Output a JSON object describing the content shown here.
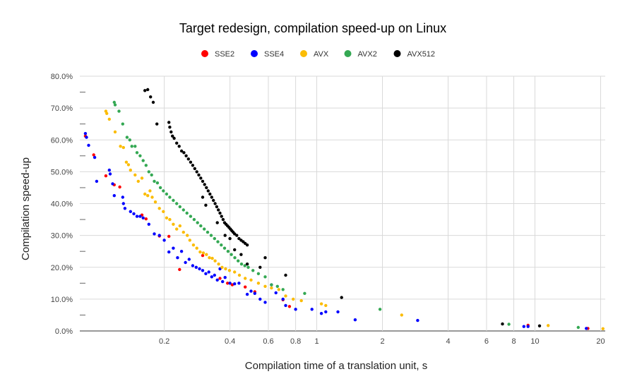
{
  "chart_data": {
    "type": "scatter",
    "title": "Target redesign, compilation speed-up on Linux",
    "xlabel": "Compilation time of a translation unit, s",
    "ylabel": "Compilation speed-up",
    "x_scale": "log",
    "xlim": [
      0.082,
      21
    ],
    "ylim": [
      0,
      0.8
    ],
    "x_ticks": [
      {
        "value": 0.2,
        "label": "0.2"
      },
      {
        "value": 0.4,
        "label": "0.4"
      },
      {
        "value": 0.6,
        "label": "0.6"
      },
      {
        "value": 0.8,
        "label": "0.8"
      },
      {
        "value": 1,
        "label": "1"
      },
      {
        "value": 2,
        "label": "2"
      },
      {
        "value": 4,
        "label": "4"
      },
      {
        "value": 6,
        "label": "6"
      },
      {
        "value": 8,
        "label": "8"
      },
      {
        "value": 10,
        "label": "10"
      },
      {
        "value": 20,
        "label": "20"
      }
    ],
    "y_ticks": [
      {
        "value": 0.0,
        "label": "0.0%"
      },
      {
        "value": 0.1,
        "label": "10.0%"
      },
      {
        "value": 0.2,
        "label": "20.0%"
      },
      {
        "value": 0.3,
        "label": "30.0%"
      },
      {
        "value": 0.4,
        "label": "40.0%"
      },
      {
        "value": 0.5,
        "label": "50.0%"
      },
      {
        "value": 0.6,
        "label": "60.0%"
      },
      {
        "value": 0.7,
        "label": "70.0%"
      },
      {
        "value": 0.8,
        "label": "80.0%"
      }
    ],
    "grid": true,
    "legend_position": "top",
    "series": [
      {
        "name": "SSE2",
        "color": "#ff0000",
        "points": [
          [
            0.087,
            0.612
          ],
          [
            0.095,
            0.553
          ],
          [
            0.108,
            0.487
          ],
          [
            0.118,
            0.459
          ],
          [
            0.125,
            0.452
          ],
          [
            0.158,
            0.364
          ],
          [
            0.165,
            0.352
          ],
          [
            0.19,
            0.298
          ],
          [
            0.21,
            0.297
          ],
          [
            0.235,
            0.193
          ],
          [
            0.3,
            0.237
          ],
          [
            0.36,
            0.165
          ],
          [
            0.39,
            0.15
          ],
          [
            0.41,
            0.145
          ],
          [
            0.47,
            0.138
          ],
          [
            0.52,
            0.123
          ],
          [
            0.7,
            0.098
          ],
          [
            0.75,
            0.077
          ],
          [
            9.3,
            0.018
          ],
          [
            17.5,
            0.008
          ]
        ]
      },
      {
        "name": "SSE4",
        "color": "#0000ff",
        "points": [
          [
            0.087,
            0.62
          ],
          [
            0.088,
            0.608
          ],
          [
            0.09,
            0.583
          ],
          [
            0.096,
            0.545
          ],
          [
            0.098,
            0.47
          ],
          [
            0.112,
            0.505
          ],
          [
            0.113,
            0.493
          ],
          [
            0.116,
            0.462
          ],
          [
            0.118,
            0.425
          ],
          [
            0.129,
            0.42
          ],
          [
            0.13,
            0.4
          ],
          [
            0.132,
            0.385
          ],
          [
            0.14,
            0.375
          ],
          [
            0.145,
            0.368
          ],
          [
            0.15,
            0.36
          ],
          [
            0.155,
            0.36
          ],
          [
            0.16,
            0.355
          ],
          [
            0.17,
            0.335
          ],
          [
            0.18,
            0.305
          ],
          [
            0.19,
            0.3
          ],
          [
            0.2,
            0.285
          ],
          [
            0.21,
            0.248
          ],
          [
            0.22,
            0.26
          ],
          [
            0.23,
            0.23
          ],
          [
            0.24,
            0.25
          ],
          [
            0.25,
            0.215
          ],
          [
            0.26,
            0.225
          ],
          [
            0.27,
            0.205
          ],
          [
            0.28,
            0.2
          ],
          [
            0.29,
            0.195
          ],
          [
            0.3,
            0.19
          ],
          [
            0.31,
            0.18
          ],
          [
            0.32,
            0.185
          ],
          [
            0.33,
            0.17
          ],
          [
            0.34,
            0.175
          ],
          [
            0.35,
            0.16
          ],
          [
            0.36,
            0.195
          ],
          [
            0.37,
            0.155
          ],
          [
            0.38,
            0.168
          ],
          [
            0.4,
            0.15
          ],
          [
            0.42,
            0.148
          ],
          [
            0.44,
            0.15
          ],
          [
            0.48,
            0.115
          ],
          [
            0.5,
            0.125
          ],
          [
            0.52,
            0.118
          ],
          [
            0.55,
            0.1
          ],
          [
            0.58,
            0.09
          ],
          [
            0.62,
            0.145
          ],
          [
            0.65,
            0.12
          ],
          [
            0.7,
            0.1
          ],
          [
            0.72,
            0.08
          ],
          [
            0.8,
            0.068
          ],
          [
            0.95,
            0.068
          ],
          [
            1.05,
            0.055
          ],
          [
            1.1,
            0.06
          ],
          [
            1.25,
            0.06
          ],
          [
            1.5,
            0.035
          ],
          [
            2.9,
            0.033
          ],
          [
            8.9,
            0.014
          ],
          [
            9.3,
            0.014
          ],
          [
            17.2,
            0.008
          ]
        ]
      },
      {
        "name": "AVX",
        "color": "#fbbc04",
        "points": [
          [
            0.108,
            0.69
          ],
          [
            0.109,
            0.683
          ],
          [
            0.112,
            0.665
          ],
          [
            0.119,
            0.625
          ],
          [
            0.126,
            0.58
          ],
          [
            0.13,
            0.576
          ],
          [
            0.134,
            0.53
          ],
          [
            0.137,
            0.522
          ],
          [
            0.14,
            0.505
          ],
          [
            0.147,
            0.49
          ],
          [
            0.152,
            0.47
          ],
          [
            0.158,
            0.48
          ],
          [
            0.163,
            0.43
          ],
          [
            0.168,
            0.425
          ],
          [
            0.172,
            0.44
          ],
          [
            0.176,
            0.42
          ],
          [
            0.182,
            0.405
          ],
          [
            0.19,
            0.385
          ],
          [
            0.198,
            0.375
          ],
          [
            0.205,
            0.355
          ],
          [
            0.212,
            0.35
          ],
          [
            0.22,
            0.335
          ],
          [
            0.228,
            0.32
          ],
          [
            0.236,
            0.33
          ],
          [
            0.245,
            0.31
          ],
          [
            0.255,
            0.3
          ],
          [
            0.262,
            0.285
          ],
          [
            0.272,
            0.27
          ],
          [
            0.282,
            0.26
          ],
          [
            0.292,
            0.248
          ],
          [
            0.302,
            0.245
          ],
          [
            0.312,
            0.24
          ],
          [
            0.322,
            0.23
          ],
          [
            0.332,
            0.228
          ],
          [
            0.342,
            0.22
          ],
          [
            0.355,
            0.21
          ],
          [
            0.368,
            0.2
          ],
          [
            0.382,
            0.195
          ],
          [
            0.398,
            0.19
          ],
          [
            0.42,
            0.185
          ],
          [
            0.442,
            0.175
          ],
          [
            0.47,
            0.165
          ],
          [
            0.5,
            0.16
          ],
          [
            0.54,
            0.15
          ],
          [
            0.58,
            0.14
          ],
          [
            0.62,
            0.135
          ],
          [
            0.67,
            0.13
          ],
          [
            0.72,
            0.11
          ],
          [
            0.78,
            0.1
          ],
          [
            0.85,
            0.095
          ],
          [
            1.05,
            0.085
          ],
          [
            1.1,
            0.08
          ],
          [
            2.45,
            0.05
          ],
          [
            11.5,
            0.017
          ],
          [
            20.5,
            0.007
          ]
        ]
      },
      {
        "name": "AVX2",
        "color": "#34a853",
        "points": [
          [
            0.118,
            0.718
          ],
          [
            0.119,
            0.71
          ],
          [
            0.124,
            0.69
          ],
          [
            0.129,
            0.65
          ],
          [
            0.135,
            0.608
          ],
          [
            0.139,
            0.6
          ],
          [
            0.142,
            0.58
          ],
          [
            0.147,
            0.58
          ],
          [
            0.15,
            0.56
          ],
          [
            0.155,
            0.55
          ],
          [
            0.16,
            0.535
          ],
          [
            0.165,
            0.52
          ],
          [
            0.17,
            0.5
          ],
          [
            0.175,
            0.49
          ],
          [
            0.18,
            0.47
          ],
          [
            0.186,
            0.465
          ],
          [
            0.192,
            0.45
          ],
          [
            0.198,
            0.44
          ],
          [
            0.205,
            0.43
          ],
          [
            0.212,
            0.42
          ],
          [
            0.22,
            0.41
          ],
          [
            0.228,
            0.4
          ],
          [
            0.236,
            0.39
          ],
          [
            0.245,
            0.38
          ],
          [
            0.254,
            0.37
          ],
          [
            0.264,
            0.36
          ],
          [
            0.274,
            0.35
          ],
          [
            0.284,
            0.34
          ],
          [
            0.294,
            0.33
          ],
          [
            0.305,
            0.32
          ],
          [
            0.316,
            0.31
          ],
          [
            0.328,
            0.3
          ],
          [
            0.34,
            0.29
          ],
          [
            0.352,
            0.28
          ],
          [
            0.365,
            0.27
          ],
          [
            0.378,
            0.26
          ],
          [
            0.392,
            0.25
          ],
          [
            0.406,
            0.24
          ],
          [
            0.421,
            0.23
          ],
          [
            0.436,
            0.22
          ],
          [
            0.452,
            0.21
          ],
          [
            0.468,
            0.205
          ],
          [
            0.485,
            0.2
          ],
          [
            0.51,
            0.19
          ],
          [
            0.54,
            0.18
          ],
          [
            0.58,
            0.17
          ],
          [
            0.62,
            0.145
          ],
          [
            0.66,
            0.14
          ],
          [
            0.7,
            0.13
          ],
          [
            0.88,
            0.118
          ],
          [
            1.95,
            0.068
          ],
          [
            7.6,
            0.021
          ],
          [
            15.8,
            0.011
          ]
        ]
      },
      {
        "name": "AVX512",
        "color": "#000000",
        "points": [
          [
            0.163,
            0.755
          ],
          [
            0.168,
            0.758
          ],
          [
            0.173,
            0.735
          ],
          [
            0.178,
            0.718
          ],
          [
            0.185,
            0.65
          ],
          [
            0.21,
            0.655
          ],
          [
            0.212,
            0.64
          ],
          [
            0.215,
            0.625
          ],
          [
            0.218,
            0.612
          ],
          [
            0.222,
            0.605
          ],
          [
            0.228,
            0.59
          ],
          [
            0.234,
            0.58
          ],
          [
            0.24,
            0.565
          ],
          [
            0.246,
            0.56
          ],
          [
            0.252,
            0.55
          ],
          [
            0.258,
            0.54
          ],
          [
            0.264,
            0.53
          ],
          [
            0.27,
            0.52
          ],
          [
            0.276,
            0.51
          ],
          [
            0.282,
            0.5
          ],
          [
            0.288,
            0.49
          ],
          [
            0.294,
            0.48
          ],
          [
            0.3,
            0.47
          ],
          [
            0.306,
            0.46
          ],
          [
            0.312,
            0.45
          ],
          [
            0.318,
            0.44
          ],
          [
            0.324,
            0.43
          ],
          [
            0.33,
            0.42
          ],
          [
            0.336,
            0.41
          ],
          [
            0.342,
            0.4
          ],
          [
            0.348,
            0.39
          ],
          [
            0.354,
            0.38
          ],
          [
            0.36,
            0.37
          ],
          [
            0.366,
            0.36
          ],
          [
            0.372,
            0.35
          ],
          [
            0.378,
            0.34
          ],
          [
            0.384,
            0.335
          ],
          [
            0.39,
            0.33
          ],
          [
            0.396,
            0.325
          ],
          [
            0.402,
            0.32
          ],
          [
            0.408,
            0.315
          ],
          [
            0.414,
            0.31
          ],
          [
            0.42,
            0.305
          ],
          [
            0.43,
            0.3
          ],
          [
            0.44,
            0.29
          ],
          [
            0.45,
            0.285
          ],
          [
            0.46,
            0.28
          ],
          [
            0.47,
            0.275
          ],
          [
            0.48,
            0.27
          ],
          [
            0.3,
            0.42
          ],
          [
            0.31,
            0.395
          ],
          [
            0.35,
            0.34
          ],
          [
            0.38,
            0.3
          ],
          [
            0.4,
            0.29
          ],
          [
            0.42,
            0.255
          ],
          [
            0.45,
            0.24
          ],
          [
            0.48,
            0.21
          ],
          [
            0.55,
            0.2
          ],
          [
            0.58,
            0.23
          ],
          [
            0.72,
            0.175
          ],
          [
            1.3,
            0.105
          ],
          [
            7.1,
            0.022
          ],
          [
            10.5,
            0.016
          ]
        ]
      }
    ]
  }
}
